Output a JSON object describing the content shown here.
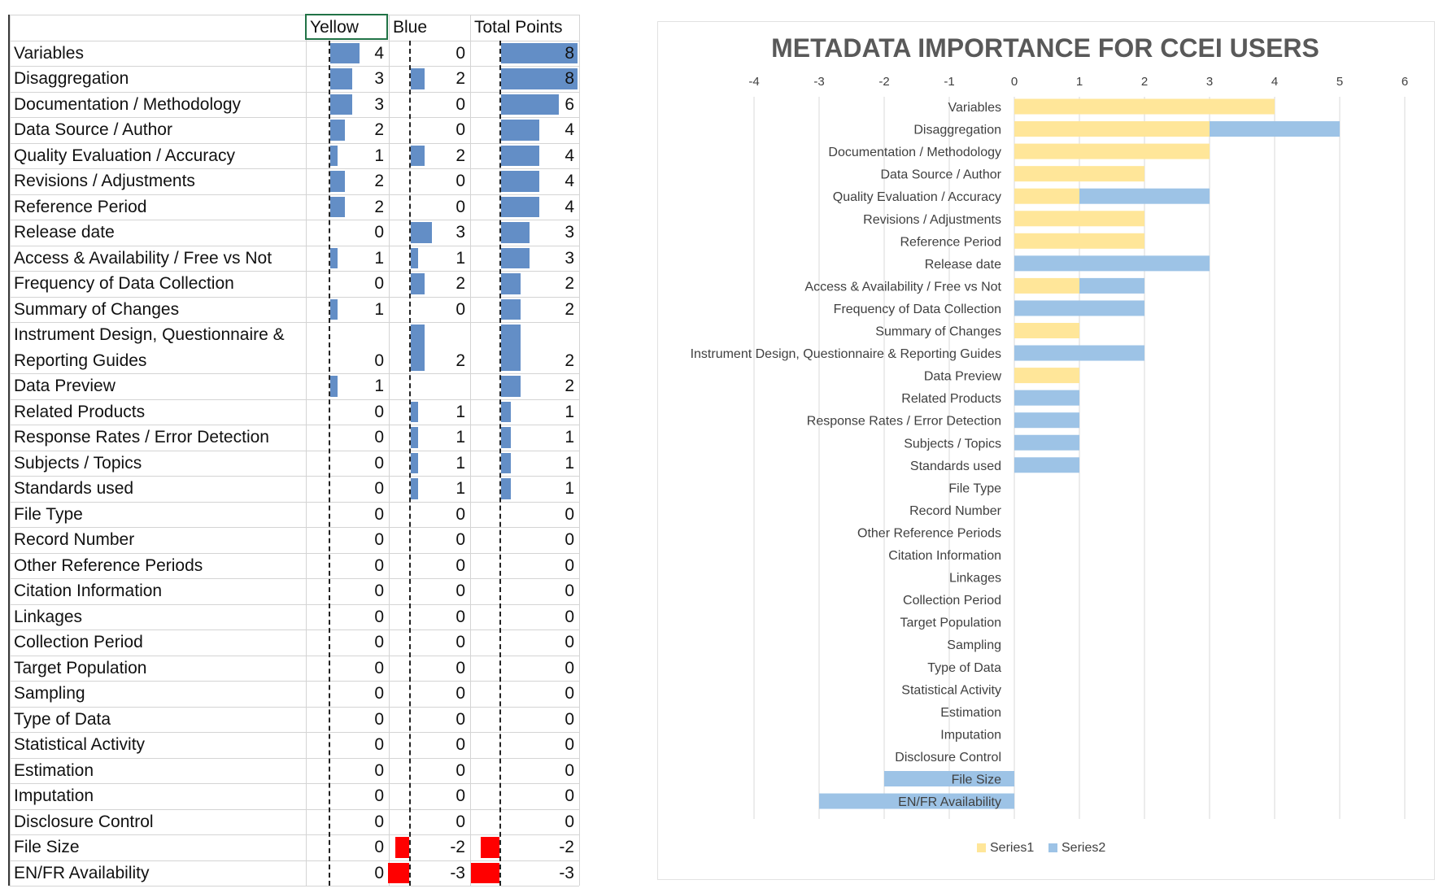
{
  "table": {
    "headers": [
      "",
      "Yellow",
      "Blue",
      "Total Points"
    ],
    "rows": [
      {
        "label": "Variables",
        "yellow": 4,
        "blue": 0,
        "total": 8
      },
      {
        "label": "Disaggregation",
        "yellow": 3,
        "blue": 2,
        "total": 8
      },
      {
        "label": "Documentation / Methodology",
        "yellow": 3,
        "blue": 0,
        "total": 6
      },
      {
        "label": "Data Source / Author",
        "yellow": 2,
        "blue": 0,
        "total": 4
      },
      {
        "label": "Quality Evaluation / Accuracy",
        "yellow": 1,
        "blue": 2,
        "total": 4
      },
      {
        "label": "Revisions / Adjustments",
        "yellow": 2,
        "blue": 0,
        "total": 4
      },
      {
        "label": "Reference Period",
        "yellow": 2,
        "blue": 0,
        "total": 4
      },
      {
        "label": "Release date",
        "yellow": 0,
        "blue": 3,
        "total": 3
      },
      {
        "label": "Access & Availability / Free vs Not",
        "yellow": 1,
        "blue": 1,
        "total": 3
      },
      {
        "label": "Frequency of Data Collection",
        "yellow": 0,
        "blue": 2,
        "total": 2
      },
      {
        "label": "Summary of Changes",
        "yellow": 1,
        "blue": 0,
        "total": 2
      },
      {
        "label": "Instrument Design, Questionnaire &",
        "label2": "Reporting Guides",
        "yellow": 0,
        "blue": 2,
        "total": 2,
        "tall": true
      },
      {
        "label": "Data Preview",
        "yellow": 1,
        "blue": null,
        "total": 2
      },
      {
        "label": "Related Products",
        "yellow": 0,
        "blue": 1,
        "total": 1
      },
      {
        "label": "Response Rates / Error Detection",
        "yellow": 0,
        "blue": 1,
        "total": 1
      },
      {
        "label": "Subjects / Topics",
        "yellow": 0,
        "blue": 1,
        "total": 1
      },
      {
        "label": "Standards used",
        "yellow": 0,
        "blue": 1,
        "total": 1
      },
      {
        "label": "File Type",
        "yellow": 0,
        "blue": 0,
        "total": 0
      },
      {
        "label": "Record Number",
        "yellow": 0,
        "blue": 0,
        "total": 0
      },
      {
        "label": "Other Reference Periods",
        "yellow": 0,
        "blue": 0,
        "total": 0
      },
      {
        "label": "Citation Information",
        "yellow": 0,
        "blue": 0,
        "total": 0
      },
      {
        "label": "Linkages",
        "yellow": 0,
        "blue": 0,
        "total": 0
      },
      {
        "label": "Collection Period",
        "yellow": 0,
        "blue": 0,
        "total": 0
      },
      {
        "label": "Target Population",
        "yellow": 0,
        "blue": 0,
        "total": 0
      },
      {
        "label": "Sampling",
        "yellow": 0,
        "blue": 0,
        "total": 0
      },
      {
        "label": "Type of Data",
        "yellow": 0,
        "blue": 0,
        "total": 0
      },
      {
        "label": "Statistical Activity",
        "yellow": 0,
        "blue": 0,
        "total": 0
      },
      {
        "label": "Estimation",
        "yellow": 0,
        "blue": 0,
        "total": 0
      },
      {
        "label": "Imputation",
        "yellow": 0,
        "blue": 0,
        "total": 0
      },
      {
        "label": "Disclosure Control",
        "yellow": 0,
        "blue": 0,
        "total": 0
      },
      {
        "label": "File Size",
        "yellow": 0,
        "blue": -2,
        "total": -2
      },
      {
        "label": "EN/FR Availability",
        "yellow": 0,
        "blue": -3,
        "total": -3
      }
    ],
    "colors": {
      "positive_bar": "#638ec6",
      "negative_bar": "#ff0000",
      "selected_cell_border": "#217346"
    }
  },
  "chart_data": {
    "type": "bar",
    "orientation": "horizontal",
    "stacked": true,
    "title": "METADATA IMPORTANCE FOR CCEI USERS",
    "categories": [
      "Variables",
      "Disaggregation",
      "Documentation / Methodology",
      "Data Source / Author",
      "Quality Evaluation / Accuracy",
      "Revisions / Adjustments",
      "Reference Period",
      "Release date",
      "Access & Availability / Free vs Not",
      "Frequency of Data Collection",
      "Summary of Changes",
      "Instrument Design, Questionnaire & Reporting Guides",
      "Data Preview",
      "Related Products",
      "Response Rates / Error Detection",
      "Subjects / Topics",
      "Standards used",
      "File Type",
      "Record Number",
      "Other Reference Periods",
      "Citation Information",
      "Linkages",
      "Collection Period",
      "Target Population",
      "Sampling",
      "Type of Data",
      "Statistical Activity",
      "Estimation",
      "Imputation",
      "Disclosure Control",
      "File Size",
      "EN/FR Availability"
    ],
    "series": [
      {
        "name": "Series1",
        "color": "#ffe699",
        "values": [
          4,
          3,
          3,
          2,
          1,
          2,
          2,
          0,
          1,
          0,
          1,
          0,
          1,
          0,
          0,
          0,
          0,
          0,
          0,
          0,
          0,
          0,
          0,
          0,
          0,
          0,
          0,
          0,
          0,
          0,
          0,
          0
        ]
      },
      {
        "name": "Series2",
        "color": "#9dc3e6",
        "values": [
          0,
          2,
          0,
          0,
          2,
          0,
          0,
          3,
          1,
          2,
          0,
          2,
          0,
          1,
          1,
          1,
          1,
          0,
          0,
          0,
          0,
          0,
          0,
          0,
          0,
          0,
          0,
          0,
          0,
          0,
          -2,
          -3
        ]
      }
    ],
    "xlim": [
      -4,
      6
    ],
    "xticks": [
      -4,
      -3,
      -2,
      -1,
      0,
      1,
      2,
      3,
      4,
      5,
      6
    ],
    "grid": true,
    "legend": "bottom"
  }
}
